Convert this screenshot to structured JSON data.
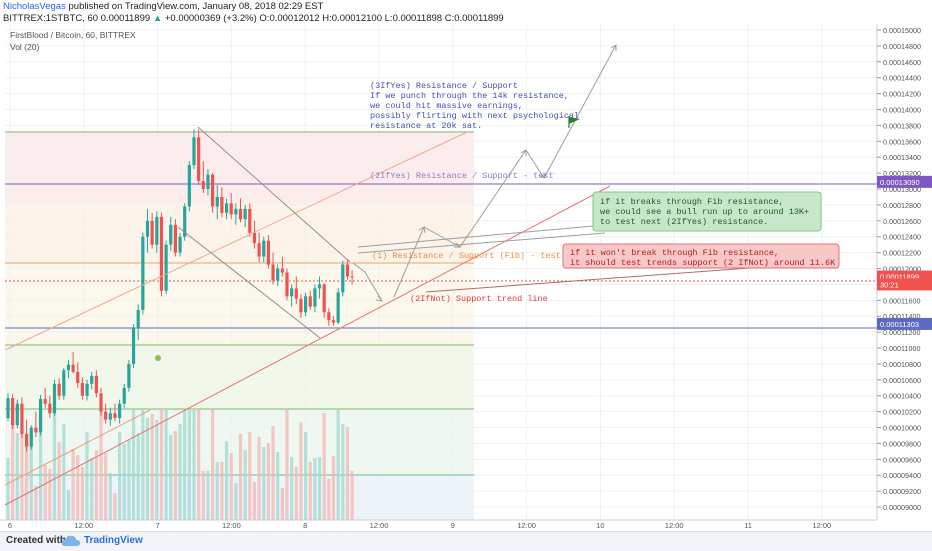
{
  "header": {
    "author": "NicholasVegas",
    "published_text": "published on TradingView.com, January 08, 2018 02:29 EST",
    "symbol_line": "BITTREX:1STBTC, 60",
    "last": "0.00011899",
    "change_arrow": "▲",
    "change": "+0.00000369 (+3.2%)",
    "o_label": "O:",
    "o_val": "0.00012012",
    "h_label": "H:",
    "h_val": "0.00012100",
    "l_label": "L:",
    "l_val": "0.00011898",
    "c_label": "C:",
    "c_val": "0.00011899"
  },
  "chart_data": {
    "type": "candlestick",
    "title": "FirstBlood / Bitcoin, 60, BITTREX",
    "indicator": "Vol (20)",
    "ylim": [
      8.9e-05,
      0.00015
    ],
    "y_ticks": [
      9e-05,
      9.2e-05,
      9.4e-05,
      9.6e-05,
      9.8e-05,
      0.0001,
      0.000102,
      0.000104,
      0.000106,
      0.000108,
      0.00011,
      0.000112,
      0.000114,
      0.000116,
      0.000118,
      0.00012,
      0.000122,
      0.000124,
      0.000126,
      0.000128,
      0.00013,
      0.000132,
      0.000134,
      0.000136,
      0.000138,
      0.00014,
      0.000142,
      0.000144,
      0.000146,
      0.000148,
      0.00015
    ],
    "x_ticks": [
      "6",
      "12:00",
      "7",
      "12:00",
      "8",
      "12:00",
      "9",
      "12:00",
      "10",
      "12:00",
      "11",
      "12:00"
    ],
    "price_labels": [
      {
        "text": "0.00013090",
        "value": 0.0001309,
        "color": "#7e57c2"
      },
      {
        "text": "0.00011899",
        "value": 0.00011899,
        "color": "#ef5350"
      },
      {
        "text": "30:21",
        "value": 0.000118,
        "color": "#ef5350"
      },
      {
        "text": "0.00011303",
        "value": 0.00011303,
        "color": "#5c6bc0"
      }
    ],
    "candles": [
      [
        0.0001012,
        0.0001043,
        0.0001008,
        0.0001037
      ],
      [
        0.0001037,
        0.0001042,
        9.98e-05,
        0.0001003
      ],
      [
        0.0001003,
        0.0001035,
        9.99e-05,
        0.000103
      ],
      [
        0.000103,
        0.0001038,
        9.87e-05,
        9.92e-05
      ],
      [
        9.92e-05,
        0.000101,
        9.7e-05,
        9.76e-05
      ],
      [
        9.76e-05,
        0.0001003,
        9.72e-05,
        0.0001
      ],
      [
        0.0001,
        0.000102,
        9.88e-05,
        9.94e-05
      ],
      [
        9.94e-05,
        0.0001041,
        9.9e-05,
        0.0001036
      ],
      [
        0.0001036,
        0.000105,
        0.0001025,
        0.000103
      ],
      [
        0.000103,
        0.000104,
        0.0001012,
        0.0001018
      ],
      [
        0.0001018,
        0.000106,
        0.0001015,
        0.0001055
      ],
      [
        0.0001055,
        0.0001062,
        0.0001035,
        0.000104
      ],
      [
        0.000104,
        0.0001075,
        0.0001035,
        0.0001072
      ],
      [
        0.0001072,
        0.0001085,
        0.0001062,
        0.0001079
      ],
      [
        0.0001079,
        0.0001095,
        0.0001068,
        0.000107
      ],
      [
        0.000107,
        0.0001082,
        0.000105,
        0.0001056
      ],
      [
        0.0001056,
        0.0001063,
        0.0001035,
        0.000104
      ],
      [
        0.000104,
        0.000106,
        0.0001034,
        0.0001055
      ],
      [
        0.0001055,
        0.000107,
        0.0001048,
        0.0001065
      ],
      [
        0.0001065,
        0.0001072,
        0.0001038,
        0.0001043
      ],
      [
        0.0001043,
        0.000105,
        0.0001015,
        0.000102
      ],
      [
        0.000102,
        0.000103,
        0.0001005,
        0.000101
      ],
      [
        0.000101,
        0.0001025,
        0.0001002,
        0.0001018
      ],
      [
        0.0001018,
        0.000103,
        0.0001008,
        0.0001012
      ],
      [
        0.0001012,
        0.0001035,
        0.0001005,
        0.000103
      ],
      [
        0.000103,
        0.0001055,
        0.0001025,
        0.000105
      ],
      [
        0.000105,
        0.0001085,
        0.0001045,
        0.000108
      ],
      [
        0.000108,
        0.000113,
        0.0001075,
        0.0001125
      ],
      [
        0.0001125,
        0.0001155,
        0.000111,
        0.0001148
      ],
      [
        0.0001148,
        0.0001245,
        0.0001142,
        0.000124
      ],
      [
        0.000124,
        0.0001275,
        0.000122,
        0.000126
      ],
      [
        0.000126,
        0.000127,
        0.0001225,
        0.000123
      ],
      [
        0.000123,
        0.0001272,
        0.000122,
        0.0001265
      ],
      [
        0.0001265,
        0.000127,
        0.0001165,
        0.0001172
      ],
      [
        0.0001172,
        0.0001235,
        0.0001168,
        0.000123
      ],
      [
        0.000123,
        0.0001265,
        0.0001222,
        0.0001255
      ],
      [
        0.0001255,
        0.0001262,
        0.0001215,
        0.000122
      ],
      [
        0.000122,
        0.0001245,
        0.0001215,
        0.000124
      ],
      [
        0.000124,
        0.0001282,
        0.0001235,
        0.0001278
      ],
      [
        0.0001278,
        0.0001335,
        0.0001272,
        0.000133
      ],
      [
        0.000133,
        0.0001375,
        0.0001325,
        0.0001365
      ],
      [
        0.0001365,
        0.0001375,
        0.0001305,
        0.000131
      ],
      [
        0.000131,
        0.0001335,
        0.0001295,
        0.00013
      ],
      [
        0.00013,
        0.0001325,
        0.0001292,
        0.0001318
      ],
      [
        0.0001318,
        0.000132,
        0.000127,
        0.0001278
      ],
      [
        0.0001278,
        0.0001305,
        0.0001262,
        0.000129
      ],
      [
        0.000129,
        0.0001302,
        0.0001265,
        0.000127
      ],
      [
        0.000127,
        0.0001288,
        0.0001262,
        0.0001282
      ],
      [
        0.0001282,
        0.0001295,
        0.0001262,
        0.0001268
      ],
      [
        0.0001268,
        0.0001282,
        0.0001255,
        0.0001275
      ],
      [
        0.0001275,
        0.0001288,
        0.0001258,
        0.0001262
      ],
      [
        0.0001262,
        0.000128,
        0.0001252,
        0.0001275
      ],
      [
        0.0001275,
        0.0001282,
        0.000124,
        0.0001245
      ],
      [
        0.0001245,
        0.000126,
        0.0001225,
        0.0001232
      ],
      [
        0.0001232,
        0.0001245,
        0.0001208,
        0.0001215
      ],
      [
        0.0001215,
        0.000124,
        0.0001208,
        0.0001235
      ],
      [
        0.0001235,
        0.0001242,
        0.00012,
        0.0001205
      ],
      [
        0.0001205,
        0.000122,
        0.000118,
        0.0001185
      ],
      [
        0.0001185,
        0.0001205,
        0.0001178,
        0.00012
      ],
      [
        0.00012,
        0.0001215,
        0.000119,
        0.0001195
      ],
      [
        0.0001195,
        0.00012,
        0.000116,
        0.0001165
      ],
      [
        0.0001165,
        0.000118,
        0.0001152,
        0.0001175
      ],
      [
        0.0001175,
        0.000119,
        0.0001155,
        0.0001162
      ],
      [
        0.0001162,
        0.0001168,
        0.0001138,
        0.0001145
      ],
      [
        0.0001145,
        0.000117,
        0.000114,
        0.0001165
      ],
      [
        0.0001165,
        0.0001172,
        0.0001148,
        0.0001152
      ],
      [
        0.0001152,
        0.000118,
        0.0001145,
        0.0001175
      ],
      [
        0.0001175,
        0.000119,
        0.0001162,
        0.000118
      ],
      [
        0.000118,
        0.0001182,
        0.0001138,
        0.0001145
      ],
      [
        0.0001145,
        0.000115,
        0.0001128,
        0.0001135
      ],
      [
        0.0001135,
        0.000114,
        0.0001128,
        0.0001132
      ],
      [
        0.0001132,
        0.0001175,
        0.000113,
        0.000117
      ],
      [
        0.000117,
        0.000121,
        0.0001165,
        0.0001205
      ],
      [
        0.0001205,
        0.000121,
        0.0001186,
        0.000119
      ],
      [
        0.000119,
        0.0001198,
        0.000118,
        0.0001189
      ]
    ],
    "annotations": {
      "note_3": "(3IfYes) Resistance / Support\nIf we punch through the 14k resistance,\nwe could hit massive earnings,\npossibly flirting with next psychological\nresistance at 20k sat.",
      "line_2ifyes": "(2IfYes) Resistance / Support - test",
      "line_1": "(1) Resistance / Support (Fib) - test",
      "line_2ifnot": "(2IfNot) Support trend line",
      "box_green": "if it breaks through Fib resistance,\nwe could see a bull run up to around 13K+\nto test next (2IfYes) resistance.",
      "box_red": "if it won't break through Fib resistance,\nit should test trends support (2 IfNot) around 11.6K"
    }
  },
  "footer": {
    "label": "Created with",
    "brand": "TradingView"
  }
}
